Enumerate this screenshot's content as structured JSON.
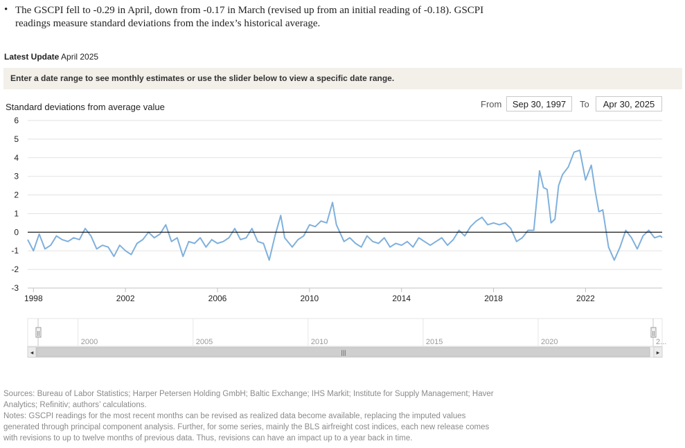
{
  "bullet": {
    "text": "The GSCPI fell to -0.29 in April, down from -0.17 in March (revised up from an initial reading of -0.18). GSCPI readings measure standard deviations from the index’s historical average."
  },
  "latest_update": {
    "label": "Latest Update",
    "value": "April 2025"
  },
  "banner": {
    "text": "Enter a date range to see monthly estimates or use the slider below to view a specific date range."
  },
  "range": {
    "from_label": "From",
    "from_value": "Sep 30, 1997",
    "to_label": "To",
    "to_value": "Apr 30, 2025"
  },
  "colors": {
    "series": "#7fb0dc",
    "zero_line": "#000000",
    "grid": "#e2e2e2",
    "banner_bg": "#f3f0ea"
  },
  "chart_data": {
    "type": "line",
    "ylabel": "Standard deviations from average value",
    "ylim": [
      -3,
      6
    ],
    "yticks": [
      -3,
      -2,
      -1,
      0,
      1,
      2,
      3,
      4,
      5,
      6
    ],
    "xlim": [
      1997.75,
      2025.33
    ],
    "xticks": [
      1998,
      2002,
      2006,
      2010,
      2014,
      2018,
      2022
    ],
    "grid": true,
    "legend": "none",
    "series": [
      {
        "x": [
          1997.75,
          1998.0,
          1998.25,
          1998.5,
          1998.75,
          1999.0,
          1999.25,
          1999.5,
          1999.75,
          2000.0,
          2000.25,
          2000.5,
          2000.75,
          2001.0,
          2001.25,
          2001.5,
          2001.75,
          2002.0,
          2002.25,
          2002.5,
          2002.75,
          2003.0,
          2003.25,
          2003.5,
          2003.75,
          2004.0,
          2004.25,
          2004.5,
          2004.75,
          2005.0,
          2005.25,
          2005.5,
          2005.75,
          2006.0,
          2006.25,
          2006.5,
          2006.75,
          2007.0,
          2007.25,
          2007.5,
          2007.75,
          2008.0,
          2008.25,
          2008.5,
          2008.75,
          2008.92,
          2009.25,
          2009.5,
          2009.75,
          2010.0,
          2010.25,
          2010.5,
          2010.75,
          2011.0,
          2011.17,
          2011.5,
          2011.75,
          2012.0,
          2012.25,
          2012.5,
          2012.75,
          2013.0,
          2013.25,
          2013.5,
          2013.75,
          2014.0,
          2014.25,
          2014.5,
          2014.75,
          2015.0,
          2015.25,
          2015.5,
          2015.75,
          2016.0,
          2016.25,
          2016.5,
          2016.75,
          2017.0,
          2017.25,
          2017.5,
          2017.75,
          2018.0,
          2018.25,
          2018.5,
          2018.75,
          2019.0,
          2019.25,
          2019.5,
          2019.75,
          2020.0,
          2020.17,
          2020.33,
          2020.5,
          2020.67,
          2020.83,
          2021.0,
          2021.25,
          2021.5,
          2021.75,
          2022.0,
          2022.25,
          2022.42,
          2022.58,
          2022.75,
          2023.0,
          2023.25,
          2023.5,
          2023.75,
          2024.0,
          2024.25,
          2024.5,
          2024.75,
          2025.0,
          2025.25,
          2025.33
        ],
        "y": [
          -0.4,
          -1.0,
          -0.1,
          -0.9,
          -0.7,
          -0.2,
          -0.4,
          -0.5,
          -0.3,
          -0.4,
          0.2,
          -0.2,
          -0.9,
          -0.7,
          -0.8,
          -1.3,
          -0.7,
          -1.0,
          -1.2,
          -0.6,
          -0.4,
          0.0,
          -0.3,
          -0.1,
          0.4,
          -0.5,
          -0.3,
          -1.3,
          -0.5,
          -0.6,
          -0.3,
          -0.8,
          -0.4,
          -0.6,
          -0.5,
          -0.3,
          0.2,
          -0.4,
          -0.3,
          0.2,
          -0.5,
          -0.6,
          -1.5,
          -0.2,
          0.9,
          -0.3,
          -0.8,
          -0.4,
          -0.2,
          0.4,
          0.3,
          0.6,
          0.5,
          1.6,
          0.4,
          -0.5,
          -0.3,
          -0.6,
          -0.8,
          -0.2,
          -0.5,
          -0.6,
          -0.3,
          -0.8,
          -0.6,
          -0.7,
          -0.5,
          -0.8,
          -0.3,
          -0.5,
          -0.7,
          -0.5,
          -0.3,
          -0.7,
          -0.4,
          0.1,
          -0.2,
          0.3,
          0.6,
          0.8,
          0.4,
          0.5,
          0.4,
          0.5,
          0.2,
          -0.5,
          -0.3,
          0.1,
          0.1,
          3.3,
          2.4,
          2.3,
          0.5,
          0.7,
          2.5,
          3.1,
          3.5,
          4.3,
          4.4,
          2.8,
          3.6,
          2.2,
          1.1,
          1.2,
          -0.8,
          -1.5,
          -0.8,
          0.1,
          -0.3,
          -0.9,
          -0.2,
          0.1,
          -0.3,
          -0.2,
          -0.29
        ]
      }
    ]
  },
  "navigator": {
    "labels": [
      "2000",
      "2005",
      "2010",
      "2015",
      "2020",
      "2..."
    ],
    "scroll_left": "◂",
    "scroll_right": "▸",
    "scroll_grip": "|||",
    "handle_grip": "||"
  },
  "notes": {
    "sources": "Sources: Bureau of Labor Statistics; Harper Petersen Holding GmbH; Baltic Exchange; IHS Markit; Institute for Supply Management; Haver Analytics; Refinitiv; authors’ calculations.",
    "notes": "Notes: GSCPI readings for the most recent months can be revised as realized data become available, replacing the imputed values generated through principal component analysis. Further, for some series, mainly the BLS airfreight cost indices, each new release comes with revisions to up to twelve months of previous data. Thus, revisions can have an impact up to a year back in time."
  }
}
